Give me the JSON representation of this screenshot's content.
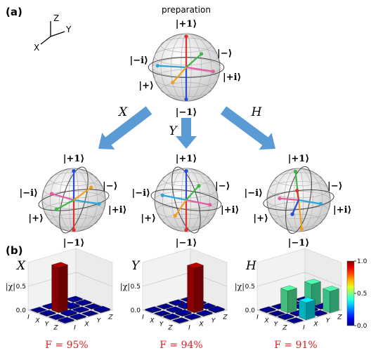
{
  "panel_a": {
    "label": "(a)",
    "axes": {
      "x": "X",
      "y": "Y",
      "z": "Z"
    },
    "preparation": {
      "title": "preparation",
      "labels": [
        "|+1⟩",
        "|−1⟩",
        "|−i⟩",
        "|−⟩",
        "|+⟩",
        "|+i⟩"
      ]
    },
    "gates": [
      "X",
      "Y",
      "H"
    ],
    "results": [
      {
        "labels": [
          "|+1⟩",
          "|−1⟩",
          "|−i⟩",
          "|−⟩",
          "|+⟩",
          "|+i⟩"
        ]
      },
      {
        "labels": [
          "|+1⟩",
          "|−1⟩",
          "|−i⟩",
          "|−⟩",
          "|+⟩",
          "|+i⟩"
        ]
      },
      {
        "labels": [
          "|+1⟩",
          "|−1⟩",
          "|−i⟩",
          "|−⟩",
          "|+⟩",
          "|+i⟩"
        ]
      }
    ]
  },
  "panel_b": {
    "label": "(b)",
    "charts": [
      {
        "title": "X",
        "zlabel": "|χ|",
        "zticks": [
          {
            "value": 0,
            "label": "0.0"
          },
          {
            "value": 0.5,
            "label": "0.5"
          }
        ],
        "axis_labels": [
          "I",
          "X",
          "Y",
          "Z"
        ],
        "values": [
          [
            0.01,
            0.02,
            0.01,
            0.02
          ],
          [
            0.02,
            0.95,
            0.03,
            0.02
          ],
          [
            0.01,
            0.03,
            0.02,
            0.01
          ],
          [
            0.02,
            0.02,
            0.01,
            0.03
          ]
        ],
        "fidelity": "F = 95%"
      },
      {
        "title": "Y",
        "zlabel": "|χ|",
        "zticks": [
          {
            "value": 0,
            "label": "0.0"
          },
          {
            "value": 0.5,
            "label": "0.5"
          }
        ],
        "axis_labels": [
          "I",
          "X",
          "Y",
          "Z"
        ],
        "values": [
          [
            0.02,
            0.01,
            0.02,
            0.01
          ],
          [
            0.01,
            0.02,
            0.03,
            0.02
          ],
          [
            0.02,
            0.03,
            0.94,
            0.02
          ],
          [
            0.01,
            0.02,
            0.02,
            0.03
          ]
        ],
        "fidelity": "F = 94%"
      },
      {
        "title": "H",
        "zlabel": "|χ|",
        "zticks": [
          {
            "value": 0,
            "label": "0.0"
          },
          {
            "value": 0.5,
            "label": "0.5"
          }
        ],
        "axis_labels": [
          "I",
          "X",
          "Y",
          "Z"
        ],
        "values": [
          [
            0.02,
            0.01,
            0.02,
            0.01
          ],
          [
            0.01,
            0.46,
            0.02,
            0.45
          ],
          [
            0.02,
            0.02,
            0.03,
            0.02
          ],
          [
            0.01,
            0.36,
            0.02,
            0.45
          ]
        ],
        "fidelity": "F = 91%"
      }
    ],
    "colorbar": {
      "colormap": "jet",
      "lim": [
        0,
        1
      ],
      "ticks": [
        {
          "value": 0,
          "label": "0.0"
        },
        {
          "value": 0.5,
          "label": "0.5"
        },
        {
          "value": 1,
          "label": "1.0"
        }
      ]
    }
  }
}
